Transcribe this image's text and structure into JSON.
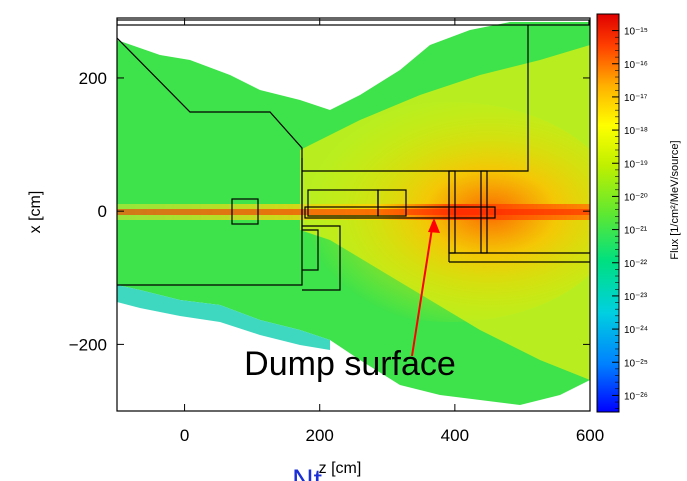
{
  "chart_data": {
    "type": "heatmap",
    "title": "",
    "xlabel": "z [cm]",
    "ylabel": "x [cm]",
    "xlim": [
      -100,
      600
    ],
    "ylim": [
      -300,
      290
    ],
    "x_ticks": [
      0,
      200,
      400,
      600
    ],
    "x_tick_labels": [
      "0",
      "200",
      "400",
      "600"
    ],
    "y_ticks": [
      -200,
      0,
      200
    ],
    "y_tick_labels": [
      "−200",
      "0",
      "200"
    ],
    "colorbar": {
      "label": "Flux [1/cm²/MeV/source]",
      "scale": "log",
      "range_exp": [
        -26.5,
        -14.5
      ],
      "tick_labels": [
        {
          "exp": -15,
          "text": "10⁻¹⁵"
        },
        {
          "exp": -16,
          "text": "10⁻¹⁶"
        },
        {
          "exp": -17,
          "text": "10⁻¹⁷"
        },
        {
          "exp": -18,
          "text": "10⁻¹⁸"
        },
        {
          "exp": -19,
          "text": "10⁻¹⁹"
        },
        {
          "exp": -20,
          "text": "10⁻²⁰"
        },
        {
          "exp": -21,
          "text": "10⁻²¹"
        },
        {
          "exp": -22,
          "text": "10⁻²²"
        },
        {
          "exp": -23,
          "text": "10⁻²³"
        },
        {
          "exp": -24,
          "text": "10⁻²⁴"
        },
        {
          "exp": -25,
          "text": "10⁻²⁵"
        },
        {
          "exp": -26,
          "text": "10⁻²⁶"
        }
      ],
      "colors": [
        "#0000ff",
        "#00a0ff",
        "#00e0e0",
        "#20e060",
        "#a0f000",
        "#ffff00",
        "#ffb000",
        "#ff6000",
        "#ff0000",
        "#d00000"
      ]
    },
    "annotation": {
      "text": "Dump surface",
      "arrow_to": [
        380,
        -10
      ],
      "color": "#ff0000"
    },
    "beam_axis_x": 0
  },
  "footer": {
    "text": "Nt"
  }
}
